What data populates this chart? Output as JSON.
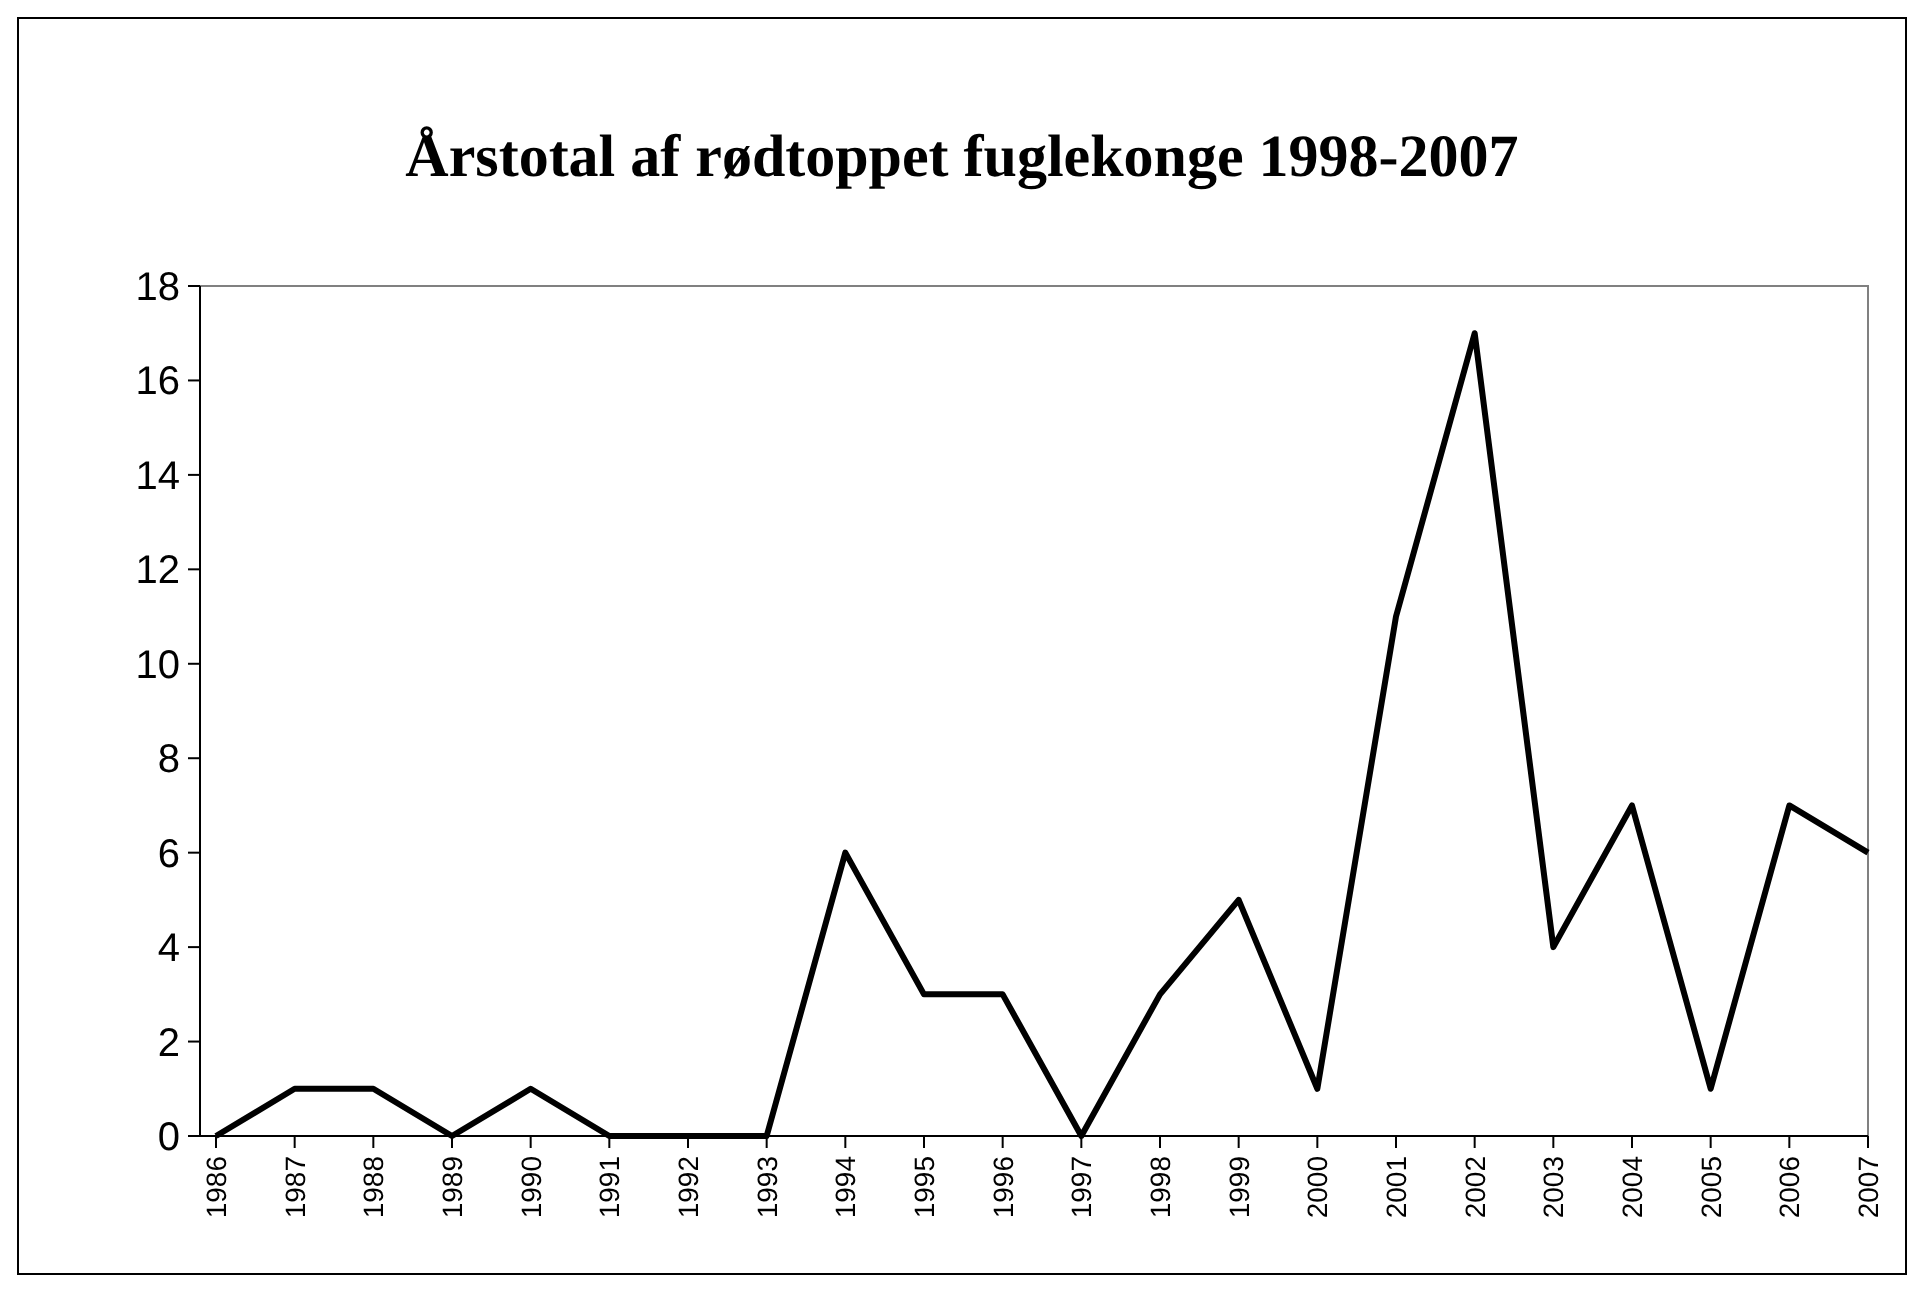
{
  "chart_data": {
    "type": "line",
    "title": "Årstotal af rødtoppet fuglekonge 1998-2007",
    "categories": [
      "1986",
      "1987",
      "1988",
      "1989",
      "1990",
      "1991",
      "1992",
      "1993",
      "1994",
      "1995",
      "1996",
      "1997",
      "1998",
      "1999",
      "2000",
      "2001",
      "2002",
      "2003",
      "2004",
      "2005",
      "2006",
      "2007"
    ],
    "series": [
      {
        "color": "#000000",
        "values": [
          0,
          1,
          1,
          0,
          1,
          0,
          0,
          0,
          6,
          3,
          3,
          0,
          3,
          5,
          1,
          11,
          17,
          4,
          7,
          1,
          7,
          6
        ]
      }
    ],
    "ylim": [
      0,
      18
    ],
    "yticks": [
      0,
      2,
      4,
      6,
      8,
      10,
      12,
      14,
      16,
      18
    ],
    "marker": "none",
    "line_style": "solid"
  }
}
